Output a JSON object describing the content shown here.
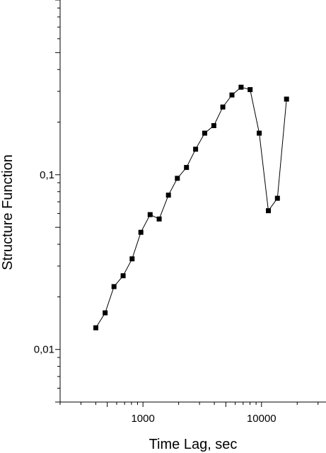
{
  "chart_data": {
    "type": "scatter",
    "title": "",
    "xlabel": "Time Lag, sec",
    "ylabel": "Structure Function",
    "x_scale": "log",
    "y_scale": "log",
    "xlim": [
      200,
      35000
    ],
    "ylim": [
      0.005,
      1
    ],
    "x_ticks": [
      {
        "value": 1000,
        "label": "1000"
      },
      {
        "value": 10000,
        "label": "10000"
      }
    ],
    "y_ticks": [
      {
        "value": 0.01,
        "label": "0,01"
      },
      {
        "value": 0.1,
        "label": "0,1"
      }
    ],
    "grid": false,
    "legend": "none",
    "colors": {
      "marker": "#000000",
      "line": "#000000"
    },
    "series": [
      {
        "x": [
          400,
          480,
          570,
          680,
          810,
          960,
          1150,
          1370,
          1640,
          1950,
          2330,
          2780,
          3320,
          3960,
          4720,
          5630,
          6720,
          8020,
          9570,
          11420,
          13620,
          16260
        ],
        "y": [
          0.0133,
          0.0162,
          0.0229,
          0.0264,
          0.033,
          0.0468,
          0.0591,
          0.0558,
          0.0764,
          0.0954,
          0.11,
          0.14,
          0.173,
          0.191,
          0.244,
          0.286,
          0.317,
          0.307,
          0.173,
          0.0622,
          0.0733,
          0.271
        ]
      }
    ]
  }
}
